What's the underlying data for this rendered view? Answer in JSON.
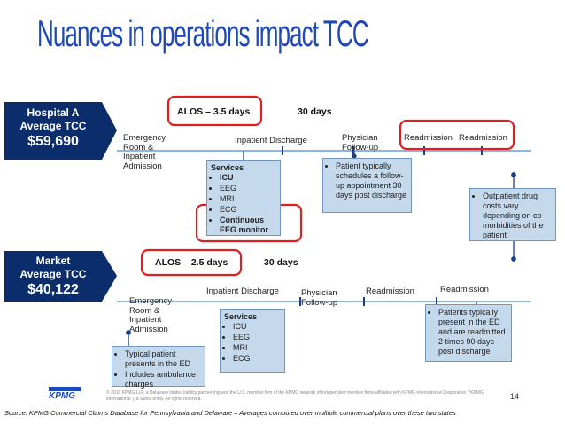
{
  "title": "Nuances in operations impact TCC",
  "hospital": {
    "name": "Hospital A",
    "metric": "Average TCC",
    "value": "$59,690",
    "alos": "ALOS – 3.5 days",
    "window": "30 days",
    "events": [
      "Emergency Room & Inpatient Admission",
      "Inpatient Discharge",
      "Physician Follow-up",
      "Readmission",
      "Readmission"
    ],
    "services": {
      "heading": "Services",
      "items": [
        "ICU",
        "EEG",
        "MRI",
        "ECG",
        "Continuous EEG monitor"
      ]
    },
    "followup_note": [
      "Patient typically schedules a follow-up appointment 30 days post discharge"
    ],
    "readmission_note": [
      "Outpatient drug costs vary depending on co-morbidities of the patient"
    ]
  },
  "market": {
    "name": "Market",
    "metric": "Average TCC",
    "value": "$40,122",
    "alos": "ALOS – 2.5 days",
    "window": "30 days",
    "events": [
      "Emergency Room & Inpatient Admission",
      "Inpatient Discharge",
      "Physician Follow-up",
      "Readmission",
      "Readmission"
    ],
    "services": {
      "heading": "Services",
      "items": [
        "ICU",
        "EEG",
        "MRI",
        "ECG"
      ]
    },
    "admission_note": [
      "Typical patient presents in the ED",
      "Includes ambulance charges"
    ],
    "readmission_note": [
      "Patients typically present in the ED and are readmitted 2 times 90 days post discharge"
    ]
  },
  "footer": {
    "logo": "KPMG",
    "copyright": "© 2016 KPMG LLP, a Delaware limited liability partnership and the U.S. member firm of the KPMG network of independent member firms affiliated with KPMG International Cooperative (\"KPMG International\"), a Swiss entity. All rights reserved.",
    "page": "14",
    "source": "Source: KPMG Commercial Claims Database for Pennsylvania and Delaware – Averages computed over multiple commercial plans over these two states"
  }
}
